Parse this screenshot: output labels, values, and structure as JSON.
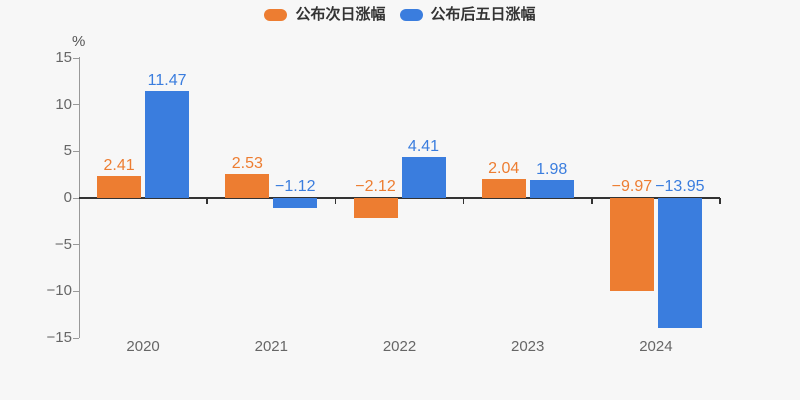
{
  "background_color": "#f7f7f7",
  "legend": {
    "items": [
      {
        "label": "公布次日涨幅",
        "color": "#ed7d31"
      },
      {
        "label": "公布后五日涨幅",
        "color": "#3a7dde"
      }
    ]
  },
  "axis": {
    "unit_label": "%",
    "axis_line_color": "#999999",
    "zero_line_color": "#333333",
    "tick_label_color": "#666666"
  },
  "chart_data": {
    "type": "bar",
    "title": "",
    "xlabel": "",
    "ylabel": "%",
    "categories": [
      "2020",
      "2021",
      "2022",
      "2023",
      "2024"
    ],
    "series": [
      {
        "name": "公布次日涨幅",
        "color": "#ed7d31",
        "values": [
          2.41,
          2.53,
          -2.12,
          2.04,
          -9.97
        ]
      },
      {
        "name": "公布后五日涨幅",
        "color": "#3a7dde",
        "values": [
          11.47,
          -1.12,
          4.41,
          1.98,
          -13.95
        ]
      }
    ],
    "ylim": [
      -15,
      15
    ],
    "yticks": [
      15,
      10,
      5,
      0,
      -5,
      -10,
      -15
    ],
    "legend_position": "top",
    "grid": false,
    "value_labels_shown": true
  }
}
